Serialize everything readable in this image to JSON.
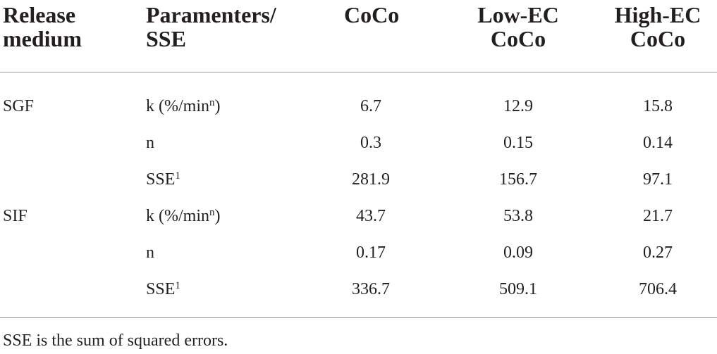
{
  "table": {
    "headers": [
      "Release\nmedium",
      "Paramenters/\nSSE",
      "CoCo",
      "Low-EC\nCoCo",
      "High-EC\nCoCo"
    ],
    "rows": [
      {
        "medium": "SGF",
        "param": "k (%/min",
        "param_sup": "n",
        "param_tail": ")",
        "coco": "6.7",
        "low_ec": "12.9",
        "high_ec": "15.8"
      },
      {
        "medium": "",
        "param": "n",
        "param_sup": "",
        "param_tail": "",
        "coco": "0.3",
        "low_ec": "0.15",
        "high_ec": "0.14"
      },
      {
        "medium": "",
        "param": "SSE",
        "param_sup": "1",
        "param_tail": "",
        "coco": "281.9",
        "low_ec": "156.7",
        "high_ec": "97.1"
      },
      {
        "medium": "SIF",
        "param": "k (%/min",
        "param_sup": "n",
        "param_tail": ")",
        "coco": "43.7",
        "low_ec": "53.8",
        "high_ec": "21.7"
      },
      {
        "medium": "",
        "param": "n",
        "param_sup": "",
        "param_tail": "",
        "coco": "0.17",
        "low_ec": "0.09",
        "high_ec": "0.27"
      },
      {
        "medium": "",
        "param": "SSE",
        "param_sup": "1",
        "param_tail": "",
        "coco": "336.7",
        "low_ec": "509.1",
        "high_ec": "706.4"
      }
    ]
  },
  "footnote": "SSE is the sum of squared errors."
}
